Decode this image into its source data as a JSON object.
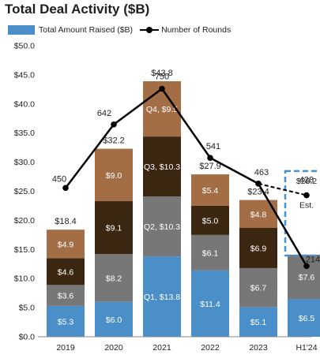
{
  "title": "Total Deal Activity ($B)",
  "legend": {
    "bar_label": "Total Amount Raised ($B)",
    "line_label": "Number of Rounds"
  },
  "colors": {
    "segment_1": "#4a8fc7",
    "segment_2": "#777777",
    "segment_3": "#3a2611",
    "segment_4": "#a36d46",
    "line": "#000000",
    "estimate_box": "#4a8fc7"
  },
  "chart_data": {
    "type": "bar",
    "stacked": true,
    "categories": [
      "2019",
      "2020",
      "2021",
      "2022",
      "2023",
      "H1'24"
    ],
    "series": [
      {
        "values": [
          5.3,
          6.0,
          13.8,
          11.4,
          5.1,
          6.5
        ],
        "labels": [
          "$5.3",
          "$6.0",
          "Q1, $13.8",
          "$11.4",
          "$5.1",
          "$6.5"
        ]
      },
      {
        "values": [
          3.6,
          8.2,
          10.3,
          6.1,
          6.7,
          7.6
        ],
        "labels": [
          "$3.6",
          "$8.2",
          "Q2, $10.3",
          "$6.1",
          "$6.7",
          "$7.6"
        ]
      },
      {
        "values": [
          4.6,
          9.1,
          10.3,
          5.0,
          6.9,
          null
        ],
        "labels": [
          "$4.6",
          "$9.1",
          "Q3, $10.3",
          "$5.0",
          "$6.9",
          ""
        ]
      },
      {
        "values": [
          4.9,
          9.0,
          9.5,
          5.4,
          4.8,
          null
        ],
        "labels": [
          "$4.9",
          "$9.0",
          "Q4, $9.5",
          "$5.4",
          "$4.8",
          ""
        ]
      }
    ],
    "totals": [
      "$18.4",
      "$32.2",
      "$43.8",
      "$27.9",
      "$23.4",
      "$14.1"
    ],
    "totals_shown": [
      true,
      true,
      true,
      true,
      true,
      false
    ],
    "estimate": {
      "category": "H1'24",
      "total_label": "$28.2",
      "total_value": 28.2,
      "rounds": 428,
      "rounds_label": "428",
      "est_label": "Est."
    },
    "line": {
      "name": "Number of Rounds",
      "values": [
        450,
        642,
        750,
        541,
        463,
        214
      ],
      "labels": [
        "450",
        "642",
        "750",
        "541",
        "463",
        "214"
      ]
    },
    "ylim": [
      0,
      50
    ],
    "yticks": [
      "$0.0",
      "$5.0",
      "$10.0",
      "$15.0",
      "$20.0",
      "$25.0",
      "$30.0",
      "$35.0",
      "$40.0",
      "$45.0",
      "$50.0"
    ],
    "line_ylim": [
      0,
      880
    ],
    "grid": false
  }
}
